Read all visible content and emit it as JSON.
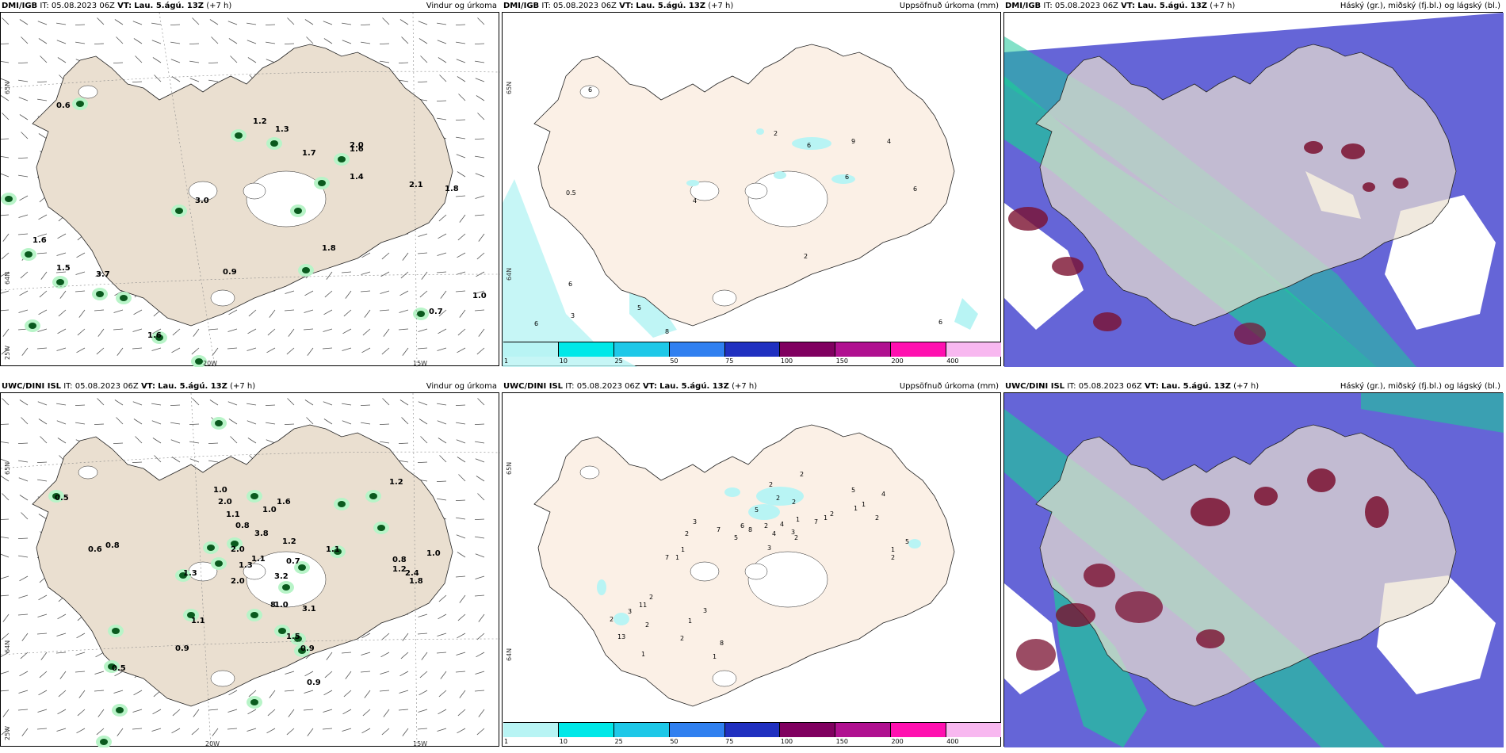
{
  "panels": [
    {
      "model": "DMI/IGB",
      "it_label": "IT:",
      "it_value": "05.08.2023 06Z",
      "vt_label": "VT:",
      "vt_value": "Lau. 5.ágú. 13Z",
      "lead": "(+7 h)",
      "title": "Vindur og úrkoma",
      "values": [
        "0.6",
        "1.2",
        "1.3",
        "1.7",
        "1.6",
        "1.4",
        "2.1",
        "1.8",
        "3.0",
        "1.8",
        "0.9",
        "1.6",
        "1.5",
        "3.7",
        "0.7",
        "1.0",
        "1.6",
        "2.0"
      ],
      "grid_labels": [
        "65N",
        "64N",
        "25W",
        "15W",
        "20W"
      ]
    },
    {
      "model": "DMI/IGB",
      "it_label": "IT:",
      "it_value": "05.08.2023 06Z",
      "vt_label": "VT:",
      "vt_value": "Lau. 5.ágú. 13Z",
      "lead": "(+7 h)",
      "title": "Uppsöfnuð úrkoma (mm)",
      "values": [
        "6",
        "2",
        "6",
        "9",
        "4",
        "6",
        "6",
        "0.5",
        "4",
        "2",
        "6",
        "6",
        "3",
        "5",
        "8",
        "6"
      ],
      "grid_labels": [
        "65N",
        "64N"
      ]
    },
    {
      "model": "DMI/IGB",
      "it_label": "IT:",
      "it_value": "05.08.2023 06Z",
      "vt_label": "VT:",
      "vt_value": "Lau. 5.ágú. 13Z",
      "lead": "(+7 h)",
      "title": "Háský (gr.), miðský (fj.bl.) og lágský (bl.)"
    },
    {
      "model": "UWC/DINI ISL",
      "it_label": "IT:",
      "it_value": "05.08.2023 06Z",
      "vt_label": "VT:",
      "vt_value": "Lau. 5.ágú. 13Z",
      "lead": "(+7 h)",
      "title": "Vindur og úrkoma",
      "values": [
        "0.5",
        "0.8",
        "0.6",
        "2.0",
        "1.0",
        "1.6",
        "1.1",
        "0.8",
        "1.0",
        "3.8",
        "1.1",
        "2.0",
        "1.2",
        "0.7",
        "1.1",
        "1.2",
        "0.8",
        "1.2",
        "1.0",
        "2.4",
        "1.8",
        "1.3",
        "2.0",
        "1.3",
        "3.2",
        "8",
        "3.1",
        "1.5",
        "0.9",
        "1.0",
        "1.1",
        "0.9",
        "0.9",
        "0.5"
      ],
      "grid_labels": [
        "65N",
        "64N",
        "25W",
        "20W",
        "15W"
      ]
    },
    {
      "model": "UWC/DINI ISL",
      "it_label": "IT:",
      "it_value": "05.08.2023 06Z",
      "vt_label": "VT:",
      "vt_value": "Lau. 5.ágú. 13Z",
      "lead": "(+7 h)",
      "title": "Uppsöfnuð úrkoma (mm)",
      "values": [
        "2",
        "2",
        "2",
        "2",
        "5",
        "4",
        "1",
        "1",
        "2",
        "1",
        "7",
        "1",
        "4",
        "5",
        "6",
        "8",
        "2",
        "4",
        "3",
        "2",
        "3",
        "5",
        "7",
        "3",
        "2",
        "1",
        "7",
        "1",
        "2",
        "11",
        "2",
        "3",
        "2",
        "13",
        "2",
        "1",
        "3",
        "8",
        "1",
        "1",
        "2",
        "5",
        "1",
        "2"
      ],
      "grid_labels": [
        "65N",
        "64N"
      ]
    },
    {
      "model": "UWC/DINI ISL",
      "it_label": "IT:",
      "it_value": "05.08.2023 06Z",
      "vt_label": "VT:",
      "vt_value": "Lau. 5.ágú. 13Z",
      "lead": "(+7 h)",
      "title": "Háský (gr.), miðský (fj.bl.) og lágský (bl.)"
    }
  ],
  "legend": {
    "ticks": [
      "1",
      "10",
      "25",
      "50",
      "75",
      "100",
      "150",
      "200",
      "400"
    ],
    "colors": [
      "#b8f4f4",
      "#00e8e8",
      "#1ec8e8",
      "#3080f0",
      "#2030c0",
      "#800060",
      "#b01090",
      "#ff10b0",
      "#f8b8f0"
    ]
  },
  "colors": {
    "land": "#eadfd0",
    "land_precip_panel": "#fbf0e6",
    "glacier": "#ffffff",
    "high_cloud": "#1ec89a",
    "mid_cloud": "#7a1030",
    "low_cloud": "#3c3cc8",
    "precip_light": "#b8f4c8",
    "precip_heavy": "#0a5a1e",
    "precip_cyan": "#b8f4f4"
  }
}
